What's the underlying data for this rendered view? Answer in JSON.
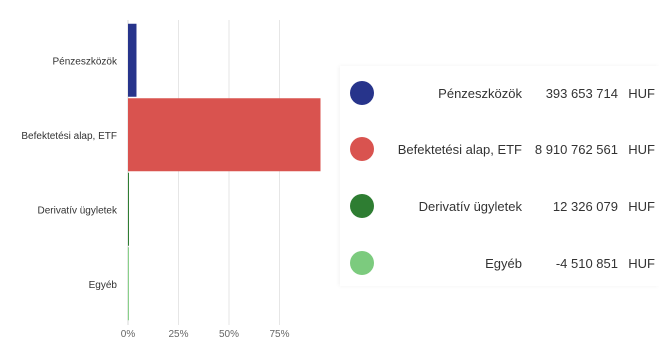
{
  "chart_data": {
    "type": "bar",
    "orientation": "horizontal",
    "categories": [
      "Pénzeszközök",
      "Befektetési alap, ETF",
      "Derivatív ügyletek",
      "Egyéb"
    ],
    "values": [
      4.2,
      95.3,
      0.1,
      -0.05
    ],
    "xlim": [
      0,
      100
    ],
    "x_ticks": [
      "0%",
      "25%",
      "50%",
      "75%"
    ],
    "x_tick_values": [
      0,
      25,
      50,
      75
    ],
    "grid": true,
    "legend_placement": "right",
    "colors": [
      "#27348b",
      "#d9534f",
      "#2e7d32",
      "#7ccb7e"
    ]
  },
  "legend": {
    "items": [
      {
        "name": "Pénzeszközök",
        "value": "393 653 714",
        "unit": "HUF",
        "color": "#27348b"
      },
      {
        "name": "Befektetési alap, ETF",
        "value": "8 910 762 561",
        "unit": "HUF",
        "color": "#d9534f"
      },
      {
        "name": "Derivatív ügyletek",
        "value": "12 326 079",
        "unit": "HUF",
        "color": "#2e7d32"
      },
      {
        "name": "Egyéb",
        "value": "-4 510 851",
        "unit": "HUF",
        "color": "#7ccb7e"
      }
    ]
  }
}
